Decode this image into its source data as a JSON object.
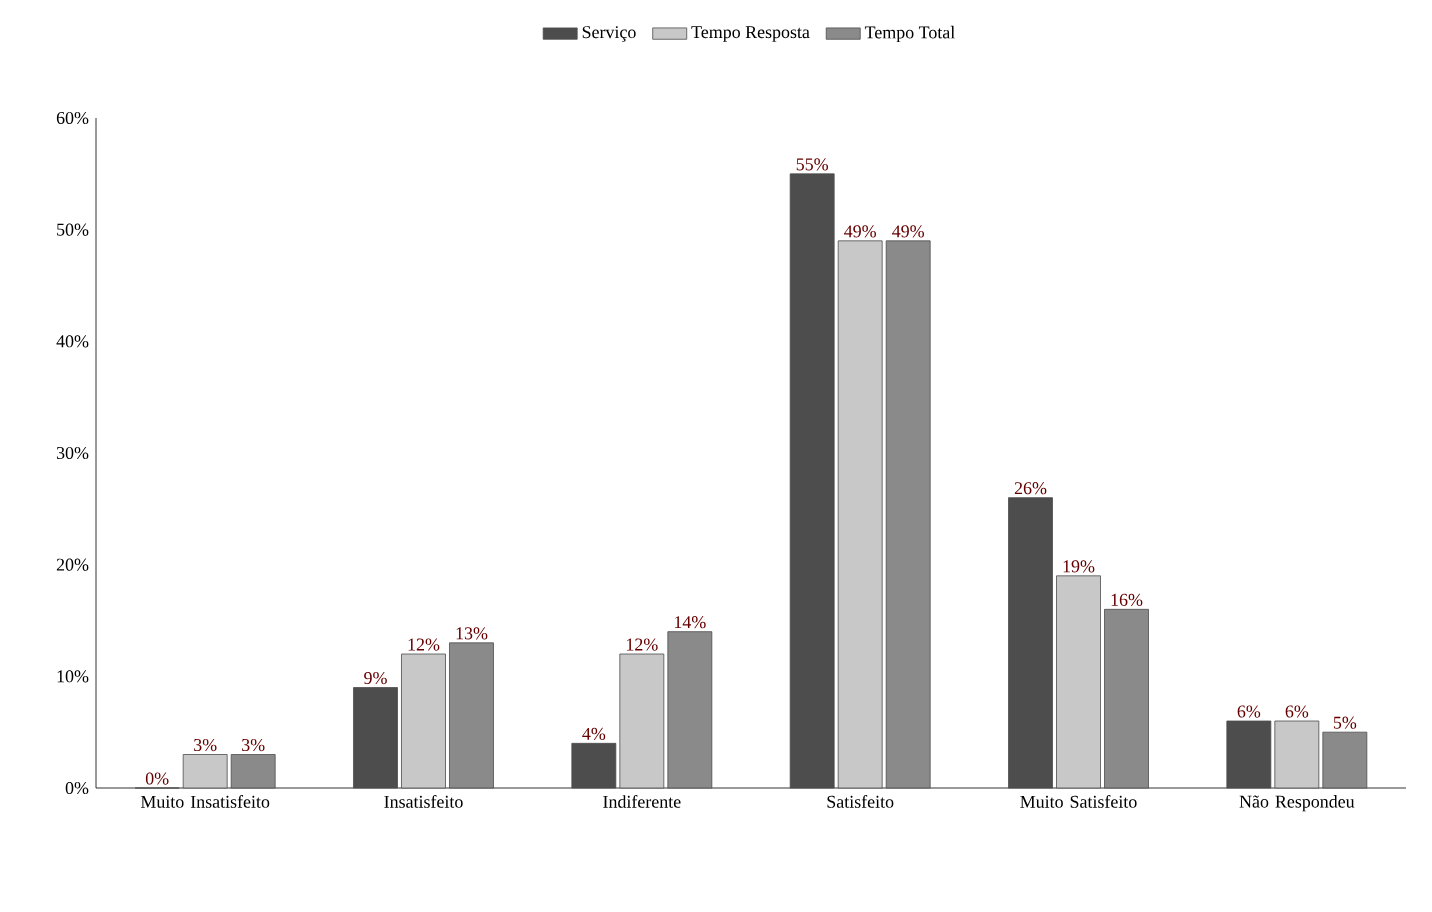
{
  "chart_data": {
    "type": "bar",
    "categories": [
      "Muito Insatisfeito",
      "Insatisfeito",
      "Indiferente",
      "Satisfeito",
      "Muito Satisfeito",
      "Não Respondeu"
    ],
    "series": [
      {
        "name": "Serviço",
        "color": "#4d4d4d",
        "values": [
          0,
          9,
          4,
          55,
          26,
          6
        ],
        "value_labels": [
          "0%",
          "9%",
          "4%",
          "55%",
          "26%",
          "6%"
        ]
      },
      {
        "name": "Tempo Resposta",
        "color": "#c8c8c8",
        "values": [
          3,
          12,
          12,
          49,
          19,
          6
        ],
        "value_labels": [
          "3%",
          "12%",
          "12%",
          "49%",
          "19%",
          "6%"
        ]
      },
      {
        "name": "Tempo Total",
        "color": "#8a8a8a",
        "values": [
          3,
          13,
          14,
          49,
          16,
          5
        ],
        "value_labels": [
          "3%",
          "13%",
          "14%",
          "49%",
          "16%",
          "5%"
        ]
      }
    ],
    "ylim": [
      0,
      60
    ],
    "yticks": [
      {
        "value": 0,
        "label": "0%"
      },
      {
        "value": 10,
        "label": "10%"
      },
      {
        "value": 20,
        "label": "20%"
      },
      {
        "value": 30,
        "label": "30%"
      },
      {
        "value": 40,
        "label": "40%"
      },
      {
        "value": 50,
        "label": "50%"
      },
      {
        "value": 60,
        "label": "60%"
      }
    ],
    "legend": "top",
    "grid": false
  }
}
